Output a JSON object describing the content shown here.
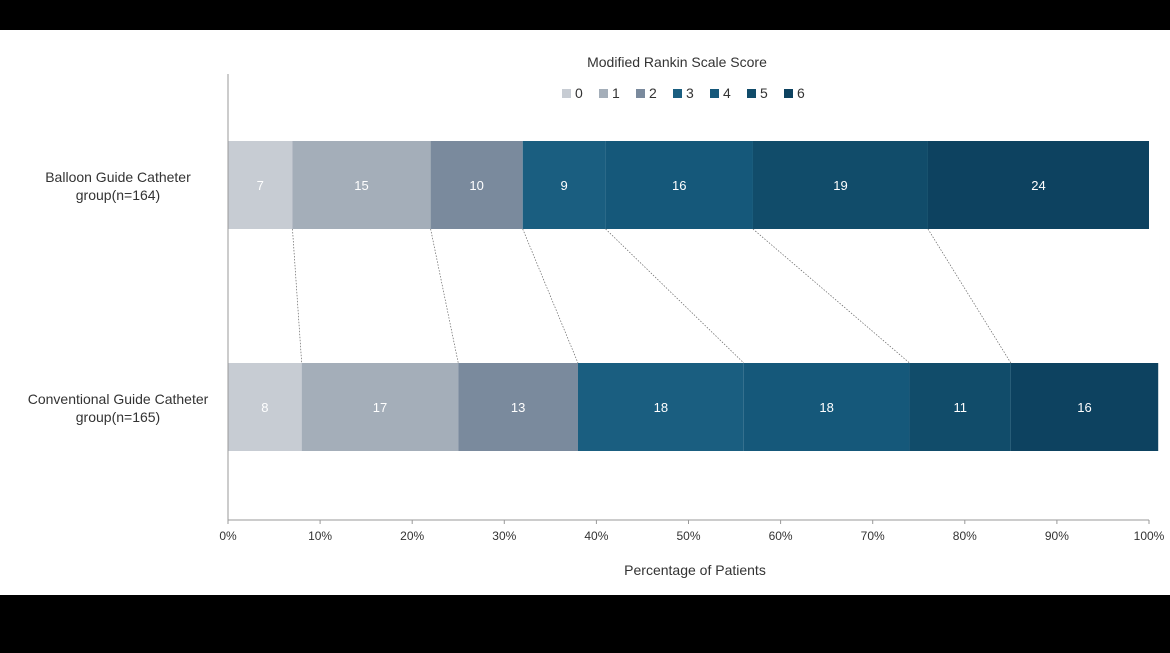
{
  "chart_data": {
    "type": "bar",
    "orientation": "horizontal",
    "stacked": true,
    "title": "Modified Rankin Scale Score",
    "xlabel": "Percentage of Patients",
    "ylabel": "",
    "xlim": [
      0,
      100
    ],
    "x_ticks": [
      "0%",
      "10%",
      "20%",
      "30%",
      "40%",
      "50%",
      "60%",
      "70%",
      "80%",
      "90%",
      "100%"
    ],
    "legend_position": "top-center",
    "categories": [
      [
        "Balloon Guide Catheter",
        "group(n=164)"
      ],
      [
        "Conventional Guide Catheter",
        "group(n=165)"
      ]
    ],
    "series": [
      {
        "name": "0",
        "color": "#c7ccd3",
        "values": [
          7,
          8
        ]
      },
      {
        "name": "1",
        "color": "#a4aeb9",
        "values": [
          15,
          17
        ]
      },
      {
        "name": "2",
        "color": "#7a8a9d",
        "values": [
          10,
          13
        ]
      },
      {
        "name": "3",
        "color": "#1a5e80",
        "values": [
          9,
          18
        ]
      },
      {
        "name": "4",
        "color": "#15587a",
        "values": [
          16,
          18
        ]
      },
      {
        "name": "5",
        "color": "#114c6a",
        "values": [
          19,
          11
        ]
      },
      {
        "name": "6",
        "color": "#0d4260",
        "values": [
          24,
          16
        ]
      }
    ],
    "connector_lines": true
  }
}
